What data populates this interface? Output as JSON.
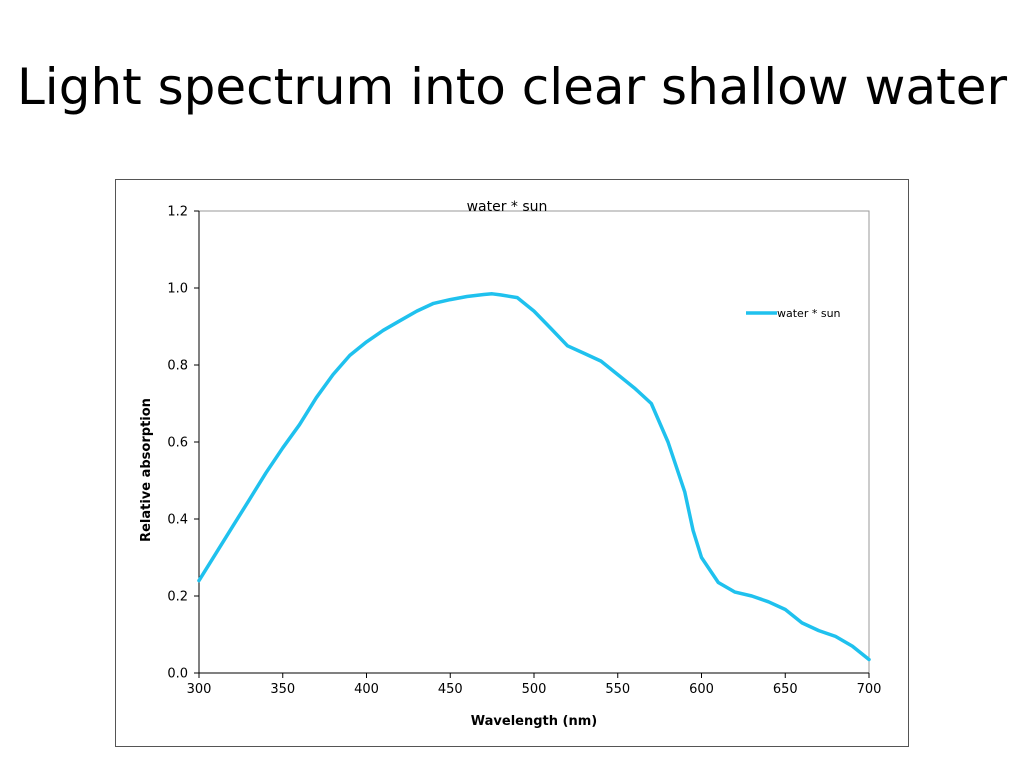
{
  "slide": {
    "title": "Light spectrum into clear shallow water"
  },
  "colors": {
    "series": "#1fc1ee",
    "axis": "#000000",
    "plot_border": "#9a9a9a"
  },
  "chart_data": {
    "type": "line",
    "title": "water * sun",
    "xlabel": "Wavelength (nm)",
    "ylabel": "Relative absorption",
    "xlim": [
      300,
      700
    ],
    "ylim": [
      0,
      1.2
    ],
    "xticks": [
      300,
      350,
      400,
      450,
      500,
      550,
      600,
      650,
      700
    ],
    "xtick_labels": [
      "300",
      "350",
      "400",
      "450",
      "500",
      "550",
      "600",
      "650",
      "700"
    ],
    "yticks": [
      0,
      0.2,
      0.4,
      0.6,
      0.8,
      1.0,
      1.2
    ],
    "ytick_labels": [
      "0.0",
      "0.2",
      "0.4",
      "0.6",
      "0.8",
      "1.0",
      "1.2"
    ],
    "grid": false,
    "legend_position": "top-right",
    "series": [
      {
        "name": "water * sun",
        "x": [
          300,
          310,
          320,
          330,
          340,
          350,
          360,
          365,
          370,
          380,
          390,
          400,
          410,
          420,
          430,
          440,
          450,
          460,
          470,
          475,
          480,
          490,
          500,
          510,
          520,
          530,
          540,
          550,
          560,
          570,
          580,
          590,
          595,
          600,
          610,
          620,
          630,
          640,
          650,
          660,
          670,
          680,
          690,
          700
        ],
        "y": [
          0.24,
          0.31,
          0.38,
          0.45,
          0.52,
          0.585,
          0.645,
          0.68,
          0.715,
          0.775,
          0.825,
          0.86,
          0.89,
          0.915,
          0.94,
          0.96,
          0.97,
          0.978,
          0.983,
          0.985,
          0.982,
          0.975,
          0.94,
          0.895,
          0.85,
          0.83,
          0.81,
          0.775,
          0.74,
          0.7,
          0.6,
          0.47,
          0.37,
          0.3,
          0.235,
          0.21,
          0.2,
          0.185,
          0.165,
          0.13,
          0.11,
          0.095,
          0.07,
          0.035
        ]
      }
    ]
  }
}
